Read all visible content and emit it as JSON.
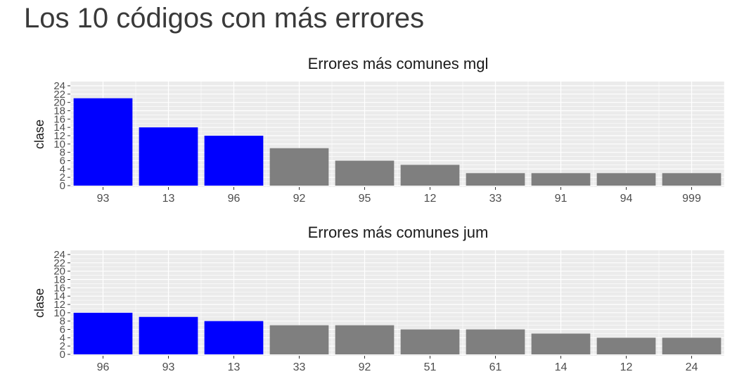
{
  "page": {
    "title": "Los 10 códigos con más errores"
  },
  "colors": {
    "highlight": "#0000ff",
    "default": "#7f7f7f",
    "panel_bg": "#ebebeb",
    "grid": "#ffffff"
  },
  "chart_data": [
    {
      "type": "bar",
      "title": "Errores más comunes mgl",
      "xlabel": "",
      "ylabel": "clase",
      "ylim": [
        0,
        24.5
      ],
      "yticks": [
        0,
        2,
        4,
        6,
        8,
        10,
        12,
        14,
        16,
        18,
        20,
        22,
        24
      ],
      "ytick_labels": [
        "0",
        "2",
        "4",
        "6",
        "8",
        "10",
        "12",
        "14",
        "16",
        "18",
        "20",
        "22",
        "24"
      ],
      "categories": [
        "93",
        "13",
        "96",
        "92",
        "95",
        "12",
        "33",
        "91",
        "94",
        "999"
      ],
      "values": [
        21,
        14,
        12,
        9,
        6,
        5,
        3,
        3,
        3,
        3
      ],
      "highlighted": [
        true,
        true,
        true,
        false,
        false,
        false,
        false,
        false,
        false,
        false
      ],
      "grid": true,
      "legend": "none"
    },
    {
      "type": "bar",
      "title": "Errores más comunes jum",
      "xlabel": "",
      "ylabel": "clase",
      "ylim": [
        0,
        24.5
      ],
      "yticks": [
        0,
        2,
        4,
        6,
        8,
        10,
        12,
        14,
        16,
        18,
        20,
        22,
        24
      ],
      "ytick_labels": [
        "0",
        "2",
        "4",
        "6",
        "8",
        "10",
        "12",
        "14",
        "16",
        "18",
        "20",
        "22",
        "24"
      ],
      "categories": [
        "96",
        "93",
        "13",
        "33",
        "92",
        "51",
        "61",
        "14",
        "12",
        "24"
      ],
      "values": [
        10,
        9,
        8,
        7,
        7,
        6,
        6,
        5,
        4,
        4
      ],
      "highlighted": [
        true,
        true,
        true,
        false,
        false,
        false,
        false,
        false,
        false,
        false
      ],
      "grid": true,
      "legend": "none"
    }
  ]
}
